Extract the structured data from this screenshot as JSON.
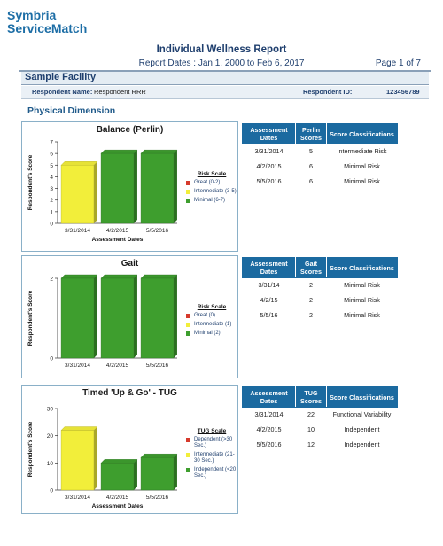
{
  "header": {
    "logo_line1": "Symbria",
    "logo_line2": "ServiceMatch",
    "title": "Individual Wellness Report",
    "report_dates": "Report Dates : Jan 1, 2000 to Feb 6, 2017",
    "page": "Page 1 of 7"
  },
  "facility": "Sample Facility",
  "respondent": {
    "name_label": "Respondent Name:",
    "name": "Respondent RRR",
    "id_label": "Respondent ID:",
    "id": "123456789"
  },
  "section_title": "Physical Dimension",
  "colors": {
    "red": "#d63a2c",
    "yellow": "#f2ee3a",
    "green": "#3e9e2e",
    "header_blue": "#1b6aa0"
  },
  "charts": [
    {
      "title": "Balance (Perlin)",
      "ylabel": "Respondent's Score",
      "xlabel": "Assessment Dates",
      "legend_title": "Risk Scale",
      "legend": [
        {
          "label": "Great (0-2)",
          "color": "red"
        },
        {
          "label": "Intermediate (3-5)",
          "color": "yellow"
        },
        {
          "label": "Minimal (6-7)",
          "color": "green"
        }
      ],
      "table": {
        "headers": [
          "Assessment Dates",
          "Perlin Scores",
          "Score Classifications"
        ],
        "rows": [
          [
            "3/31/2014",
            "5",
            "Intermediate Risk"
          ],
          [
            "4/2/2015",
            "6",
            "Minimal Risk"
          ],
          [
            "5/5/2016",
            "6",
            "Minimal Risk"
          ]
        ]
      }
    },
    {
      "title": "Gait",
      "ylabel": "Respondent's Score",
      "xlabel": "",
      "legend_title": "Risk Scale",
      "legend": [
        {
          "label": "Great (0)",
          "color": "red"
        },
        {
          "label": "Intermediate (1)",
          "color": "yellow"
        },
        {
          "label": "Minimal (2)",
          "color": "green"
        }
      ],
      "table": {
        "headers": [
          "Assessment Dates",
          "Gait Scores",
          "Score Classifications"
        ],
        "rows": [
          [
            "3/31/14",
            "2",
            "Minimal Risk"
          ],
          [
            "4/2/15",
            "2",
            "Minimal Risk"
          ],
          [
            "5/5/16",
            "2",
            "Minimal Risk"
          ]
        ]
      }
    },
    {
      "title": "Timed 'Up & Go' - TUG",
      "ylabel": "Respondent's Score",
      "xlabel": "Assessment Dates",
      "legend_title": "TUG Scale",
      "legend": [
        {
          "label": "Dependent (>30 Sec.)",
          "color": "red"
        },
        {
          "label": "Intermediate (21-30 Sec.)",
          "color": "yellow"
        },
        {
          "label": "Independent (<20 Sec.)",
          "color": "green"
        }
      ],
      "table": {
        "headers": [
          "Assessment Dates",
          "TUG Scores",
          "Score Classifications"
        ],
        "rows": [
          [
            "3/31/2014",
            "22",
            "Functional Variability"
          ],
          [
            "4/2/2015",
            "10",
            "Independent"
          ],
          [
            "5/5/2016",
            "12",
            "Independent"
          ]
        ]
      }
    }
  ],
  "chart_data": [
    {
      "type": "bar",
      "title": "Balance (Perlin)",
      "categories": [
        "3/31/2014",
        "4/2/2015",
        "5/5/2016"
      ],
      "values": [
        5,
        6,
        6
      ],
      "bar_colors": [
        "yellow",
        "green",
        "green"
      ],
      "ylim": [
        0,
        7
      ],
      "yticks": [
        0,
        1,
        2,
        3,
        4,
        5,
        6,
        7
      ],
      "xlabel": "Assessment Dates",
      "ylabel": "Respondent's Score"
    },
    {
      "type": "bar",
      "title": "Gait",
      "categories": [
        "3/31/2014",
        "4/2/2015",
        "5/5/2016"
      ],
      "values": [
        2,
        2,
        2
      ],
      "bar_colors": [
        "green",
        "green",
        "green"
      ],
      "ylim": [
        0,
        2
      ],
      "yticks": [
        0,
        2
      ],
      "xlabel": "",
      "ylabel": "Respondent's Score"
    },
    {
      "type": "bar",
      "title": "Timed 'Up & Go' - TUG",
      "categories": [
        "3/31/2014",
        "4/2/2015",
        "5/5/2016"
      ],
      "values": [
        22,
        10,
        12
      ],
      "bar_colors": [
        "yellow",
        "green",
        "green"
      ],
      "ylim": [
        0,
        30
      ],
      "yticks": [
        0,
        10,
        20,
        30
      ],
      "xlabel": "Assessment Dates",
      "ylabel": "Respondent's Score"
    }
  ]
}
